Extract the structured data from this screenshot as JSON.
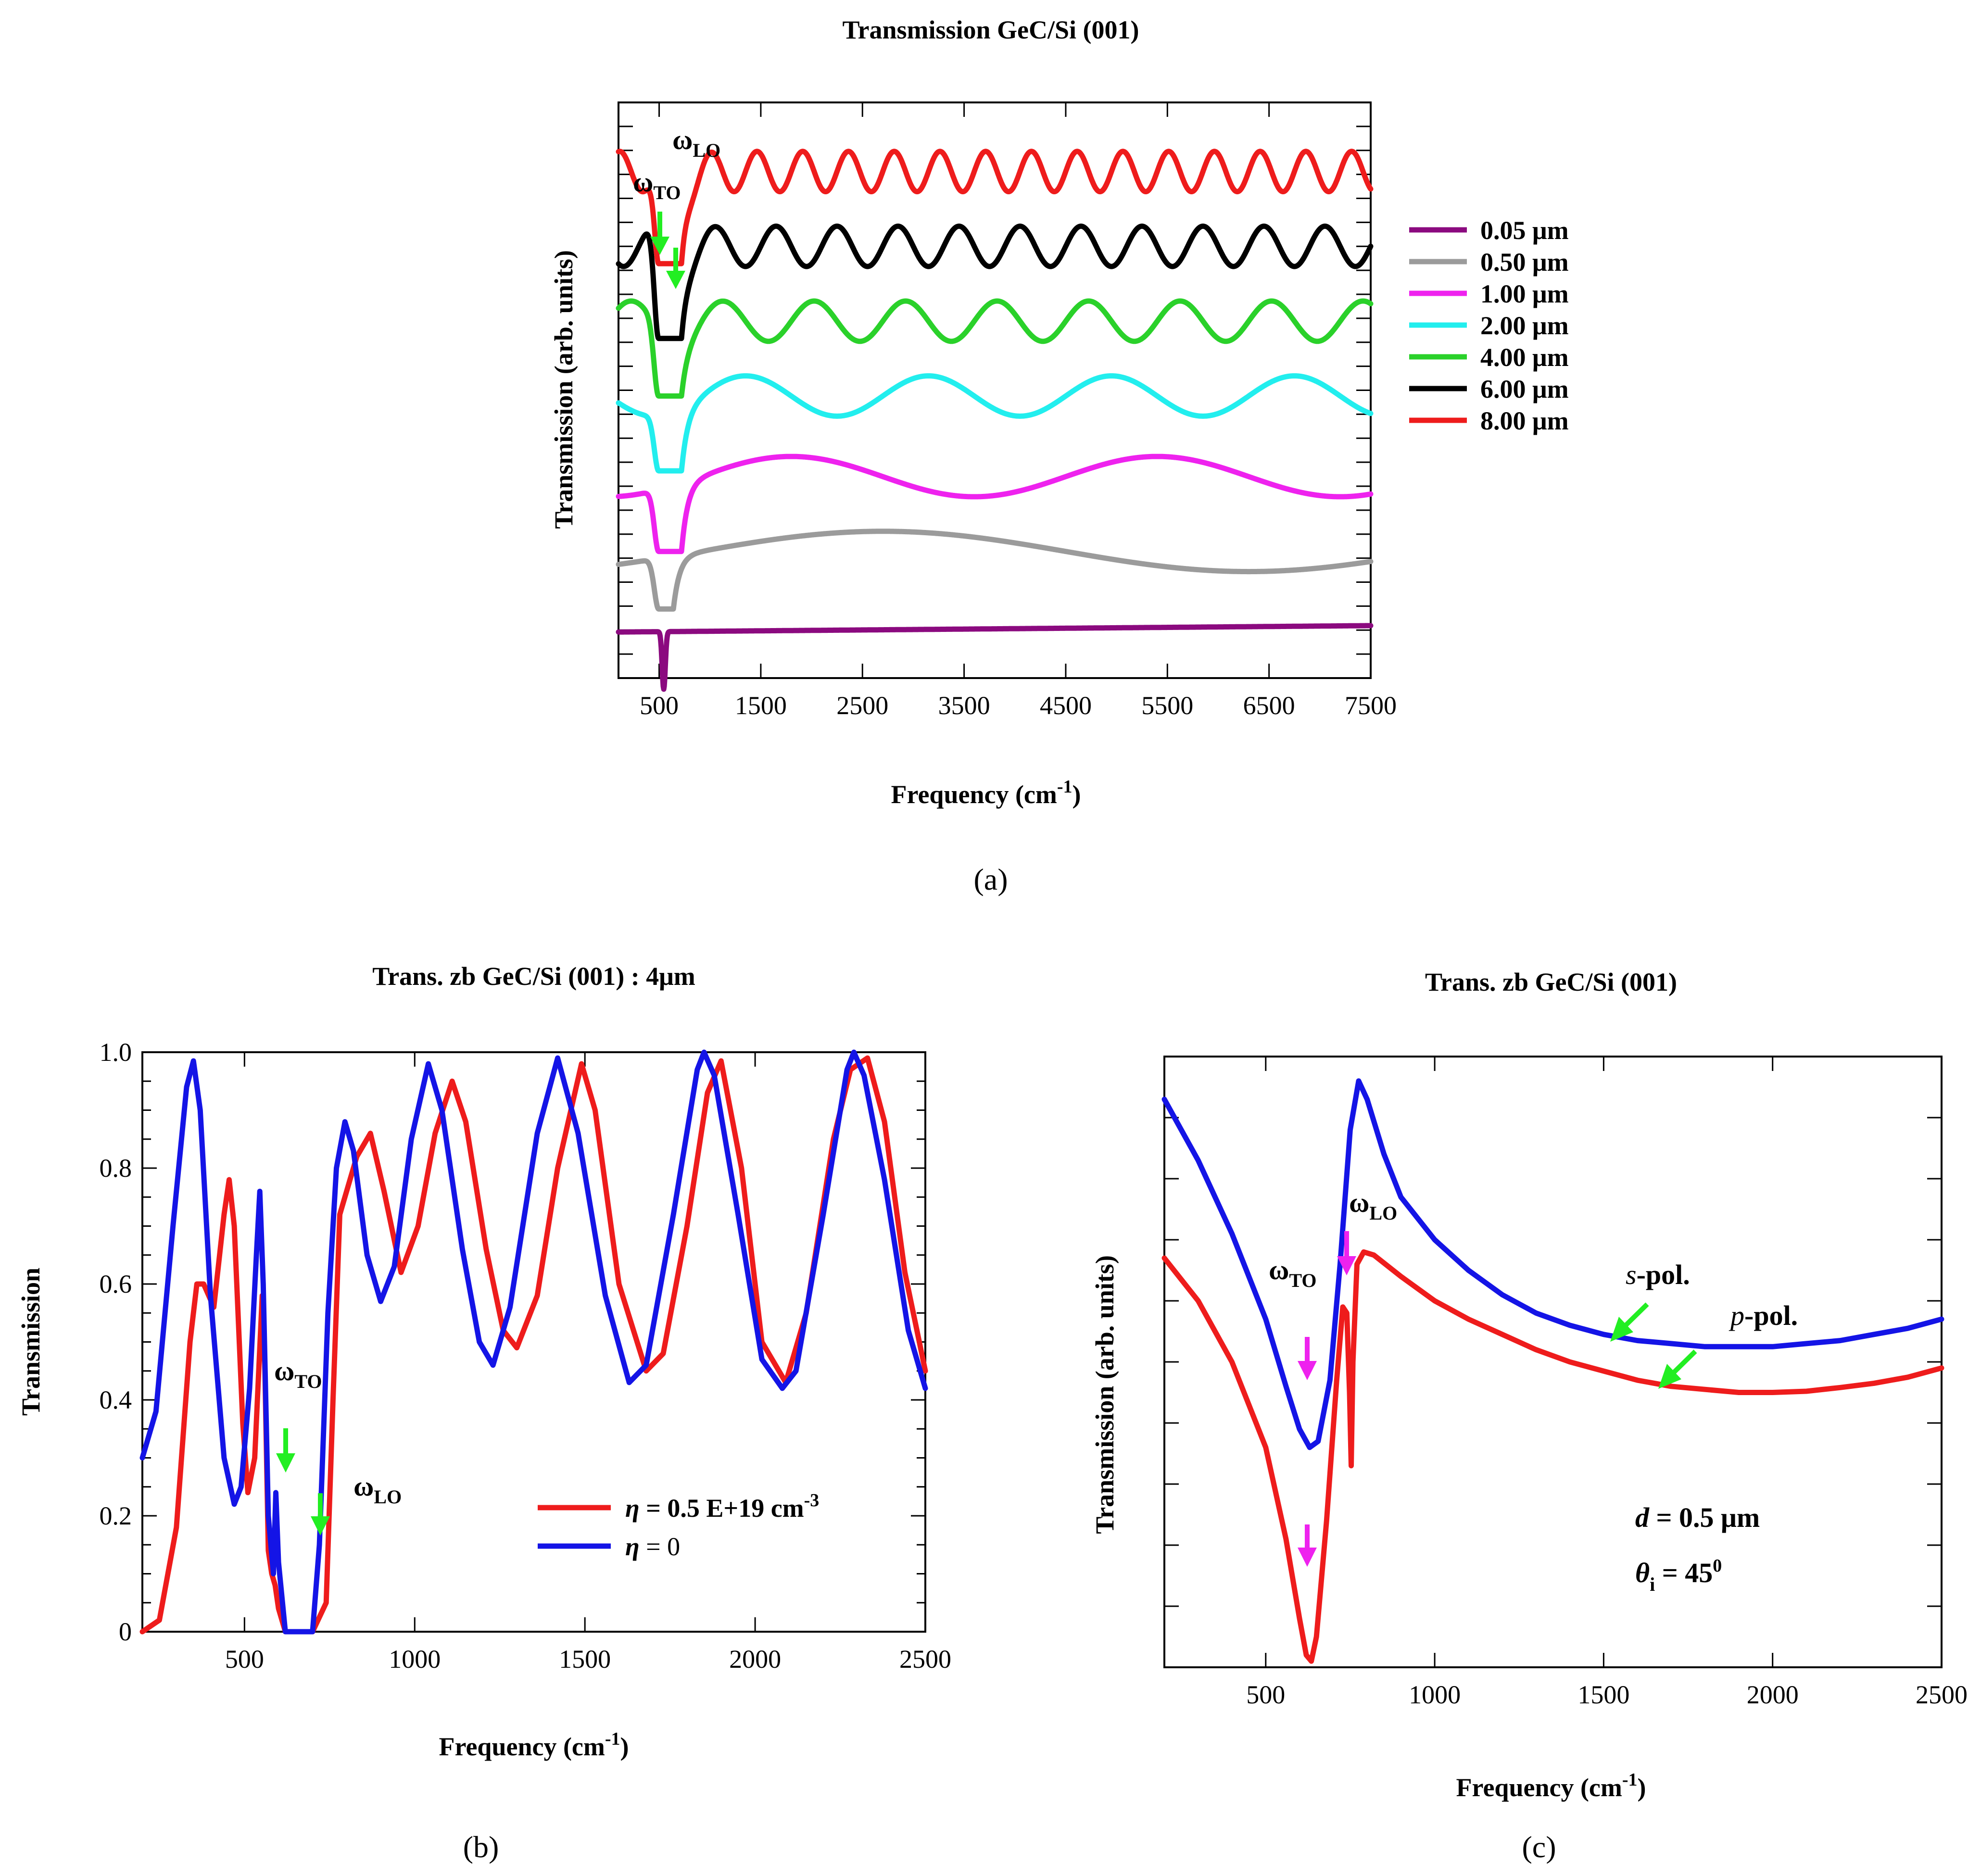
{
  "colors": {
    "red": "#ee1c1c",
    "black": "#000000",
    "green": "#2ad12a",
    "cyan": "#22eeee",
    "magenta": "#ee22ee",
    "gray": "#9b9b9b",
    "purple": "#8b0a7f",
    "blue": "#1414e6",
    "arrow_green": "#22ee22",
    "arrow_magenta": "#ee22ee"
  },
  "chart_data": [
    {
      "id": "a",
      "type": "line",
      "caption": "(a)",
      "title": "Transmission GeC/Si (001)",
      "xlabel": "Frequency (cm",
      "xlabel_sup": "-1",
      "xlabel_close": ")",
      "ylabel": "Transmission (arb. units)",
      "xlim": [
        100,
        7500
      ],
      "xticks": [
        "500",
        "1500",
        "2500",
        "3500",
        "4500",
        "5500",
        "6500",
        "7500"
      ],
      "xtick_values": [
        500,
        1500,
        2500,
        3500,
        4500,
        5500,
        6500,
        7500
      ],
      "y_tick_labels": "none (arbitrary units, stacked with vertical offsets)",
      "annotations": {
        "to_label": "ω",
        "to_sub": "TO",
        "lo_label": "ω",
        "lo_sub": "LO",
        "to_freq": 520,
        "lo_freq": 700
      },
      "series": [
        {
          "name": "0.05 μm",
          "thickness_um": 0.05,
          "color": "#8b0a7f",
          "baseline": 0.08,
          "dip_depth": 0.1,
          "osc_amp": 0.0,
          "osc_period_cm": 0
        },
        {
          "name": "0.50 μm",
          "thickness_um": 0.5,
          "color": "#9b9b9b",
          "baseline": 0.22,
          "dip_depth": 0.1,
          "osc_amp": 0.035,
          "osc_period_cm": 7200
        },
        {
          "name": "1.00 μm",
          "thickness_um": 1.0,
          "color": "#ee22ee",
          "baseline": 0.35,
          "dip_depth": 0.13,
          "osc_amp": 0.035,
          "osc_period_cm": 3600
        },
        {
          "name": "2.00 μm",
          "thickness_um": 2.0,
          "color": "#22eeee",
          "baseline": 0.49,
          "dip_depth": 0.13,
          "osc_amp": 0.035,
          "osc_period_cm": 1800
        },
        {
          "name": "4.00 μm",
          "thickness_um": 4.0,
          "color": "#2ad12a",
          "baseline": 0.62,
          "dip_depth": 0.13,
          "osc_amp": 0.035,
          "osc_period_cm": 900
        },
        {
          "name": "6.00 μm",
          "thickness_um": 6.0,
          "color": "#000000",
          "baseline": 0.75,
          "dip_depth": 0.16,
          "osc_amp": 0.035,
          "osc_period_cm": 600
        },
        {
          "name": "8.00 μm",
          "thickness_um": 8.0,
          "color": "#ee1c1c",
          "baseline": 0.88,
          "dip_depth": 0.16,
          "osc_amp": 0.035,
          "osc_period_cm": 450
        }
      ]
    },
    {
      "id": "b",
      "type": "line",
      "caption": "(b)",
      "title": "Trans. zb GeC/Si (001) : 4μm",
      "xlabel": "Frequency (cm",
      "xlabel_sup": "-1",
      "xlabel_close": ")",
      "ylabel": "Transmission",
      "xlim": [
        200,
        2500
      ],
      "ylim": [
        0,
        1.0
      ],
      "xticks": [
        "500",
        "1000",
        "1500",
        "2000",
        "2500"
      ],
      "xtick_values": [
        500,
        1000,
        1500,
        2000,
        2500
      ],
      "yticks": [
        "0",
        "0.2",
        "0.4",
        "0.6",
        "0.8",
        "1.0"
      ],
      "ytick_values": [
        0,
        0.2,
        0.4,
        0.6,
        0.8,
        1.0
      ],
      "annotations": {
        "to_label": "ω",
        "to_sub": "TO",
        "lo_label": "ω",
        "lo_sub": "LO",
        "to_freq": 620,
        "lo_freq": 730
      },
      "legend": {
        "red_label": "η",
        "red_text": " = 0.5 E+19 cm",
        "red_sup": "-3",
        "blue_label": "η",
        "blue_text": " = 0"
      },
      "series": [
        {
          "name": "η = 0.5 E+19 cm-3",
          "color": "#ee1c1c",
          "points": [
            [
              200,
              0.0
            ],
            [
              250,
              0.02
            ],
            [
              300,
              0.18
            ],
            [
              340,
              0.5
            ],
            [
              360,
              0.6
            ],
            [
              380,
              0.6
            ],
            [
              410,
              0.56
            ],
            [
              440,
              0.72
            ],
            [
              455,
              0.78
            ],
            [
              470,
              0.7
            ],
            [
              495,
              0.36
            ],
            [
              510,
              0.24
            ],
            [
              530,
              0.3
            ],
            [
              552,
              0.58
            ],
            [
              560,
              0.45
            ],
            [
              570,
              0.14
            ],
            [
              580,
              0.1
            ],
            [
              590,
              0.08
            ],
            [
              600,
              0.04
            ],
            [
              620,
              0.0
            ],
            [
              700,
              0.0
            ],
            [
              740,
              0.05
            ],
            [
              760,
              0.4
            ],
            [
              780,
              0.72
            ],
            [
              830,
              0.82
            ],
            [
              870,
              0.86
            ],
            [
              910,
              0.76
            ],
            [
              960,
              0.62
            ],
            [
              1010,
              0.7
            ],
            [
              1060,
              0.86
            ],
            [
              1110,
              0.95
            ],
            [
              1150,
              0.88
            ],
            [
              1210,
              0.66
            ],
            [
              1260,
              0.52
            ],
            [
              1300,
              0.49
            ],
            [
              1360,
              0.58
            ],
            [
              1420,
              0.8
            ],
            [
              1490,
              0.98
            ],
            [
              1530,
              0.9
            ],
            [
              1600,
              0.6
            ],
            [
              1680,
              0.45
            ],
            [
              1730,
              0.48
            ],
            [
              1800,
              0.7
            ],
            [
              1860,
              0.93
            ],
            [
              1900,
              0.985
            ],
            [
              1960,
              0.8
            ],
            [
              2020,
              0.5
            ],
            [
              2090,
              0.43
            ],
            [
              2150,
              0.55
            ],
            [
              2230,
              0.85
            ],
            [
              2280,
              0.97
            ],
            [
              2330,
              0.99
            ],
            [
              2380,
              0.88
            ],
            [
              2440,
              0.62
            ],
            [
              2500,
              0.45
            ]
          ]
        },
        {
          "name": "η = 0",
          "color": "#1414e6",
          "points": [
            [
              200,
              0.3
            ],
            [
              240,
              0.38
            ],
            [
              290,
              0.7
            ],
            [
              330,
              0.94
            ],
            [
              350,
              0.985
            ],
            [
              370,
              0.9
            ],
            [
              400,
              0.58
            ],
            [
              440,
              0.3
            ],
            [
              470,
              0.22
            ],
            [
              490,
              0.25
            ],
            [
              515,
              0.42
            ],
            [
              535,
              0.65
            ],
            [
              545,
              0.76
            ],
            [
              555,
              0.6
            ],
            [
              570,
              0.2
            ],
            [
              585,
              0.1
            ],
            [
              592,
              0.24
            ],
            [
              600,
              0.12
            ],
            [
              620,
              0.0
            ],
            [
              700,
              0.0
            ],
            [
              720,
              0.15
            ],
            [
              745,
              0.55
            ],
            [
              770,
              0.8
            ],
            [
              795,
              0.88
            ],
            [
              820,
              0.83
            ],
            [
              860,
              0.65
            ],
            [
              900,
              0.57
            ],
            [
              940,
              0.63
            ],
            [
              990,
              0.85
            ],
            [
              1040,
              0.98
            ],
            [
              1080,
              0.9
            ],
            [
              1140,
              0.66
            ],
            [
              1190,
              0.5
            ],
            [
              1230,
              0.46
            ],
            [
              1280,
              0.56
            ],
            [
              1360,
              0.86
            ],
            [
              1420,
              0.99
            ],
            [
              1480,
              0.86
            ],
            [
              1560,
              0.58
            ],
            [
              1630,
              0.43
            ],
            [
              1680,
              0.46
            ],
            [
              1760,
              0.72
            ],
            [
              1830,
              0.97
            ],
            [
              1850,
              1.0
            ],
            [
              1880,
              0.96
            ],
            [
              1950,
              0.72
            ],
            [
              2020,
              0.47
            ],
            [
              2080,
              0.42
            ],
            [
              2120,
              0.45
            ],
            [
              2200,
              0.72
            ],
            [
              2270,
              0.97
            ],
            [
              2290,
              1.0
            ],
            [
              2320,
              0.96
            ],
            [
              2380,
              0.78
            ],
            [
              2450,
              0.52
            ],
            [
              2500,
              0.42
            ]
          ]
        }
      ]
    },
    {
      "id": "c",
      "type": "line",
      "caption": "(c)",
      "title": "Trans. zb GeC/Si (001)",
      "xlabel": "Frequency (cm",
      "xlabel_sup": "-1",
      "xlabel_close": ")",
      "ylabel": "Transmission (arb. units)",
      "xlim": [
        200,
        2500
      ],
      "ylim": [
        0,
        1.0
      ],
      "xticks": [
        "500",
        "1000",
        "1500",
        "2000",
        "2500"
      ],
      "xtick_values": [
        500,
        1000,
        1500,
        2000,
        2500
      ],
      "y_tick_labels": "none (arbitrary units)",
      "annotations": {
        "to_label": "ω",
        "to_sub": "TO",
        "lo_label": "ω",
        "lo_sub": "LO",
        "to_freq": 625,
        "lo_freq": 740,
        "s_pol": "s",
        "s_pol_rest": "-pol.",
        "p_pol": "p",
        "p_pol_rest": "-pol.",
        "d_label": "d",
        "d_text": " = 0.5 μm",
        "theta_label": "θ",
        "theta_sub": "i",
        "theta_text": " = 45",
        "theta_sup": "0"
      },
      "series": [
        {
          "name": "s-pol.",
          "color": "#1414e6",
          "points": [
            [
              200,
              0.93
            ],
            [
              300,
              0.83
            ],
            [
              400,
              0.71
            ],
            [
              500,
              0.57
            ],
            [
              560,
              0.46
            ],
            [
              600,
              0.39
            ],
            [
              630,
              0.36
            ],
            [
              655,
              0.37
            ],
            [
              690,
              0.47
            ],
            [
              720,
              0.66
            ],
            [
              750,
              0.88
            ],
            [
              775,
              0.96
            ],
            [
              800,
              0.93
            ],
            [
              850,
              0.84
            ],
            [
              900,
              0.77
            ],
            [
              1000,
              0.7
            ],
            [
              1100,
              0.65
            ],
            [
              1200,
              0.61
            ],
            [
              1300,
              0.58
            ],
            [
              1400,
              0.56
            ],
            [
              1500,
              0.545
            ],
            [
              1600,
              0.535
            ],
            [
              1700,
              0.53
            ],
            [
              1800,
              0.525
            ],
            [
              1900,
              0.525
            ],
            [
              2000,
              0.525
            ],
            [
              2100,
              0.53
            ],
            [
              2200,
              0.535
            ],
            [
              2300,
              0.545
            ],
            [
              2400,
              0.555
            ],
            [
              2500,
              0.57
            ]
          ]
        },
        {
          "name": "p-pol.",
          "color": "#ee1c1c",
          "points": [
            [
              200,
              0.67
            ],
            [
              300,
              0.6
            ],
            [
              400,
              0.5
            ],
            [
              500,
              0.36
            ],
            [
              560,
              0.21
            ],
            [
              600,
              0.08
            ],
            [
              620,
              0.02
            ],
            [
              635,
              0.01
            ],
            [
              650,
              0.05
            ],
            [
              680,
              0.24
            ],
            [
              710,
              0.47
            ],
            [
              728,
              0.59
            ],
            [
              740,
              0.58
            ],
            [
              748,
              0.45
            ],
            [
              753,
              0.33
            ],
            [
              758,
              0.5
            ],
            [
              770,
              0.66
            ],
            [
              790,
              0.68
            ],
            [
              820,
              0.675
            ],
            [
              900,
              0.64
            ],
            [
              1000,
              0.6
            ],
            [
              1100,
              0.57
            ],
            [
              1200,
              0.545
            ],
            [
              1300,
              0.52
            ],
            [
              1400,
              0.5
            ],
            [
              1500,
              0.485
            ],
            [
              1600,
              0.47
            ],
            [
              1700,
              0.46
            ],
            [
              1800,
              0.455
            ],
            [
              1900,
              0.45
            ],
            [
              2000,
              0.45
            ],
            [
              2100,
              0.452
            ],
            [
              2200,
              0.458
            ],
            [
              2300,
              0.465
            ],
            [
              2400,
              0.475
            ],
            [
              2500,
              0.49
            ]
          ]
        }
      ]
    }
  ]
}
